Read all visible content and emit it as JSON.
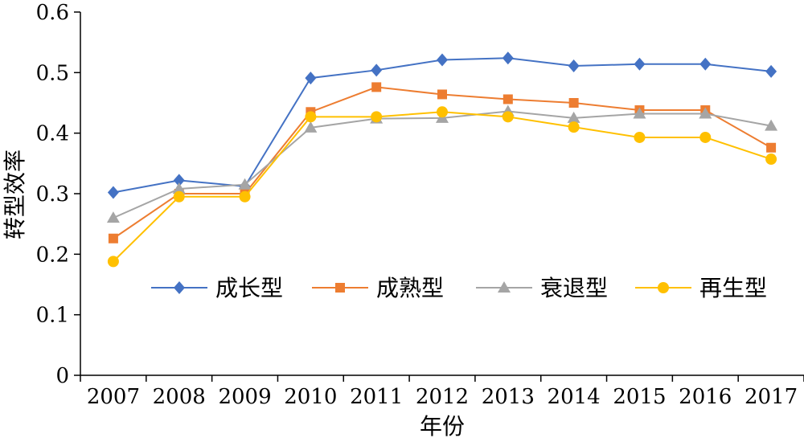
{
  "chart_data": {
    "type": "line",
    "title": "",
    "xlabel": "年份",
    "ylabel": "转型效率",
    "categories": [
      "2007",
      "2008",
      "2009",
      "2010",
      "2011",
      "2012",
      "2013",
      "2014",
      "2015",
      "2016",
      "2017"
    ],
    "ylim": [
      0,
      0.6
    ],
    "yticks": [
      "0",
      "0.1",
      "0.2",
      "0.3",
      "0.4",
      "0.5",
      "0.6"
    ],
    "grid": false,
    "legend_position": "center",
    "series": [
      {
        "name": "成长型",
        "color": "#4472C4",
        "marker": "diamond",
        "values": [
          0.302,
          0.322,
          0.312,
          0.491,
          0.504,
          0.521,
          0.524,
          0.511,
          0.514,
          0.514,
          0.502
        ]
      },
      {
        "name": "成熟型",
        "color": "#ED7D31",
        "marker": "square",
        "values": [
          0.226,
          0.3,
          0.3,
          0.435,
          0.476,
          0.464,
          0.456,
          0.45,
          0.438,
          0.438,
          0.376
        ]
      },
      {
        "name": "衰退型",
        "color": "#A5A5A5",
        "marker": "triangle",
        "values": [
          0.26,
          0.308,
          0.315,
          0.409,
          0.424,
          0.425,
          0.436,
          0.425,
          0.432,
          0.432,
          0.412
        ]
      },
      {
        "name": "再生型",
        "color": "#FFC000",
        "marker": "circle",
        "values": [
          0.188,
          0.295,
          0.295,
          0.427,
          0.427,
          0.435,
          0.427,
          0.41,
          0.393,
          0.393,
          0.357
        ]
      }
    ]
  }
}
